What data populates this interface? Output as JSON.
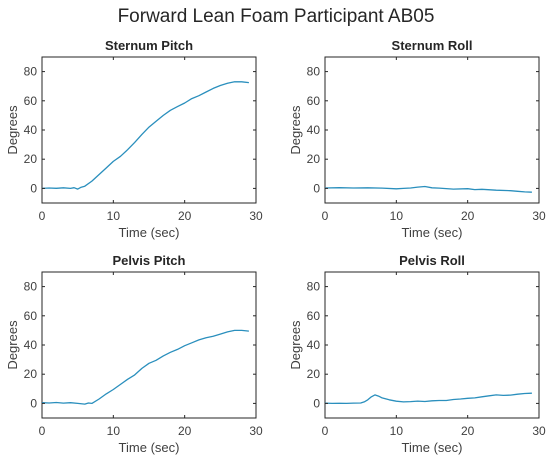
{
  "figure_title": "Forward Lean Foam Participant AB05",
  "series_color": "#2a8fbd",
  "chart_data": [
    {
      "type": "line",
      "title": "Sternum Pitch",
      "xlabel": "Time (sec)",
      "ylabel": "Degrees",
      "xlim": [
        0,
        30
      ],
      "ylim": [
        -10,
        90
      ],
      "xticks": [
        0,
        10,
        20,
        30
      ],
      "yticks": [
        0,
        20,
        40,
        60,
        80
      ],
      "grid": false,
      "series": [
        {
          "x": [
            0,
            1,
            2,
            3,
            4,
            4.5,
            5,
            5.5,
            6,
            7,
            8,
            9,
            10,
            11,
            12,
            13,
            14,
            15,
            16,
            17,
            18,
            19,
            20,
            21,
            22,
            23,
            24,
            25,
            26,
            27,
            28,
            29
          ],
          "y": [
            0,
            0.3,
            0.1,
            0.4,
            0,
            0.5,
            -0.5,
            0.8,
            1.5,
            5,
            9.5,
            14,
            18.5,
            22,
            26.5,
            31.5,
            37,
            42,
            46,
            50,
            53.5,
            56,
            58.5,
            61.5,
            63.5,
            66,
            68.5,
            70.5,
            72,
            73,
            73,
            72.5
          ]
        }
      ]
    },
    {
      "type": "line",
      "title": "Sternum Roll",
      "xlabel": "Time (sec)",
      "ylabel": "Degrees",
      "xlim": [
        0,
        30
      ],
      "ylim": [
        -10,
        90
      ],
      "xticks": [
        0,
        10,
        20,
        30
      ],
      "yticks": [
        0,
        20,
        40,
        60,
        80
      ],
      "grid": false,
      "series": [
        {
          "x": [
            0,
            2,
            4,
            6,
            8,
            10,
            11,
            12,
            13,
            14,
            15,
            16,
            18,
            20,
            21,
            22,
            24,
            26,
            27,
            28,
            29
          ],
          "y": [
            0.3,
            0.5,
            0.3,
            0.4,
            0.2,
            -0.3,
            0,
            0.3,
            0.9,
            1.3,
            0.4,
            0.2,
            -0.5,
            -0.2,
            -0.8,
            -0.6,
            -1.2,
            -1.6,
            -2,
            -2.4,
            -2.6
          ]
        }
      ]
    },
    {
      "type": "line",
      "title": "Pelvis Pitch",
      "xlabel": "Time (sec)",
      "ylabel": "Degrees",
      "xlim": [
        0,
        30
      ],
      "ylim": [
        -10,
        90
      ],
      "xticks": [
        0,
        10,
        20,
        30
      ],
      "yticks": [
        0,
        20,
        40,
        60,
        80
      ],
      "grid": false,
      "series": [
        {
          "x": [
            0,
            1,
            2,
            3,
            4,
            5,
            6,
            6.5,
            7,
            8,
            9,
            10,
            11,
            12,
            13,
            14,
            15,
            16,
            17,
            18,
            19,
            20,
            21,
            22,
            23,
            24,
            25,
            26,
            27,
            28,
            29
          ],
          "y": [
            0.5,
            0.3,
            0.6,
            0.2,
            0.5,
            0,
            -0.5,
            0.3,
            0,
            3,
            6.5,
            9.5,
            13,
            16.5,
            19.5,
            24,
            27.5,
            29.5,
            32.5,
            35,
            37,
            39.5,
            41.5,
            43.5,
            45,
            46,
            47.5,
            49,
            50,
            50,
            49.5
          ]
        }
      ]
    },
    {
      "type": "line",
      "title": "Pelvis Roll",
      "xlabel": "Time (sec)",
      "ylabel": "Degrees",
      "xlim": [
        0,
        30
      ],
      "ylim": [
        -10,
        90
      ],
      "xticks": [
        0,
        10,
        20,
        30
      ],
      "yticks": [
        0,
        20,
        40,
        60,
        80
      ],
      "grid": false,
      "series": [
        {
          "x": [
            0,
            1,
            2,
            3,
            4,
            5,
            5.5,
            6,
            6.5,
            7,
            7.5,
            8,
            9,
            10,
            11,
            12,
            13,
            14,
            15,
            16,
            17,
            18,
            19,
            20,
            21,
            22,
            23,
            24,
            25,
            26,
            27,
            28,
            29
          ],
          "y": [
            0.2,
            0,
            0.1,
            0,
            0.2,
            0.3,
            1,
            2.5,
            4.5,
            5.8,
            5,
            3.8,
            2.5,
            1.5,
            1,
            1.2,
            1.6,
            1.3,
            1.8,
            2,
            2,
            2.7,
            3,
            3.5,
            3.8,
            4.5,
            5.2,
            5.8,
            5.5,
            5.7,
            6.3,
            6.8,
            7
          ]
        }
      ]
    }
  ]
}
